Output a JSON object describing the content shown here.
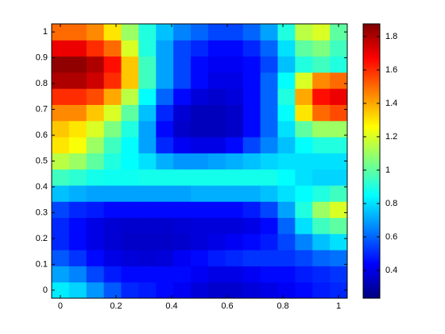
{
  "chart_data": {
    "type": "heatmap",
    "colormap": "jet",
    "x": [
      0,
      0.0625,
      0.125,
      0.1875,
      0.25,
      0.3125,
      0.375,
      0.4375,
      0.5,
      0.5625,
      0.625,
      0.6875,
      0.75,
      0.8125,
      0.875,
      0.9375,
      1
    ],
    "y": [
      0,
      0.0625,
      0.125,
      0.1875,
      0.25,
      0.3125,
      0.375,
      0.4375,
      0.5,
      0.5625,
      0.625,
      0.6875,
      0.75,
      0.8125,
      0.875,
      0.9375,
      1
    ],
    "z": [
      [
        0.82,
        0.78,
        0.68,
        0.58,
        0.5,
        0.48,
        0.45,
        0.42,
        0.38,
        0.36,
        0.36,
        0.38,
        0.4,
        0.42,
        0.45,
        0.48,
        0.5
      ],
      [
        0.7,
        0.65,
        0.55,
        0.48,
        0.45,
        0.45,
        0.45,
        0.45,
        0.42,
        0.4,
        0.4,
        0.42,
        0.45,
        0.45,
        0.48,
        0.5,
        0.52
      ],
      [
        0.58,
        0.52,
        0.45,
        0.4,
        0.38,
        0.37,
        0.38,
        0.42,
        0.45,
        0.48,
        0.5,
        0.52,
        0.52,
        0.52,
        0.55,
        0.6,
        0.62
      ],
      [
        0.5,
        0.45,
        0.4,
        0.37,
        0.35,
        0.35,
        0.35,
        0.36,
        0.38,
        0.4,
        0.42,
        0.45,
        0.48,
        0.55,
        0.65,
        0.75,
        0.8
      ],
      [
        0.5,
        0.45,
        0.4,
        0.37,
        0.36,
        0.36,
        0.36,
        0.37,
        0.38,
        0.38,
        0.38,
        0.4,
        0.45,
        0.6,
        0.8,
        0.95,
        1.0
      ],
      [
        0.55,
        0.5,
        0.48,
        0.45,
        0.45,
        0.45,
        0.45,
        0.45,
        0.45,
        0.45,
        0.45,
        0.48,
        0.55,
        0.7,
        0.9,
        1.1,
        1.2
      ],
      [
        0.75,
        0.72,
        0.7,
        0.7,
        0.7,
        0.7,
        0.7,
        0.7,
        0.72,
        0.72,
        0.72,
        0.72,
        0.75,
        0.8,
        0.85,
        0.9,
        0.95
      ],
      [
        0.95,
        0.92,
        0.88,
        0.87,
        0.87,
        0.88,
        0.88,
        0.88,
        0.88,
        0.88,
        0.88,
        0.88,
        0.88,
        0.85,
        0.8,
        0.78,
        0.78
      ],
      [
        1.15,
        1.1,
        1.0,
        0.9,
        0.85,
        0.8,
        0.72,
        0.68,
        0.68,
        0.7,
        0.72,
        0.75,
        0.78,
        0.8,
        0.8,
        0.8,
        0.8
      ],
      [
        1.3,
        1.25,
        1.1,
        0.95,
        0.85,
        0.7,
        0.5,
        0.42,
        0.4,
        0.4,
        0.45,
        0.55,
        0.65,
        0.75,
        0.85,
        0.9,
        0.9
      ],
      [
        1.35,
        1.3,
        1.2,
        1.05,
        0.9,
        0.7,
        0.45,
        0.35,
        0.33,
        0.33,
        0.35,
        0.45,
        0.6,
        0.8,
        1.0,
        1.1,
        1.1
      ],
      [
        1.45,
        1.45,
        1.35,
        1.2,
        1.0,
        0.75,
        0.5,
        0.37,
        0.33,
        0.33,
        0.35,
        0.45,
        0.6,
        0.85,
        1.3,
        1.5,
        1.55
      ],
      [
        1.6,
        1.6,
        1.55,
        1.4,
        1.15,
        0.85,
        0.6,
        0.45,
        0.38,
        0.36,
        0.38,
        0.45,
        0.6,
        0.9,
        1.4,
        1.65,
        1.7
      ],
      [
        1.8,
        1.8,
        1.75,
        1.6,
        1.35,
        0.95,
        0.7,
        0.55,
        0.45,
        0.4,
        0.4,
        0.45,
        0.6,
        0.85,
        1.2,
        1.45,
        1.5
      ],
      [
        1.85,
        1.85,
        1.8,
        1.65,
        1.35,
        0.95,
        0.7,
        0.55,
        0.45,
        0.42,
        0.42,
        0.45,
        0.55,
        0.75,
        0.9,
        0.95,
        0.9
      ],
      [
        1.7,
        1.7,
        1.6,
        1.5,
        1.2,
        0.9,
        0.7,
        0.55,
        0.5,
        0.45,
        0.45,
        0.5,
        0.6,
        0.8,
        1.0,
        1.05,
        0.95
      ],
      [
        1.5,
        1.5,
        1.45,
        1.3,
        1.1,
        0.9,
        0.75,
        0.65,
        0.6,
        0.55,
        0.55,
        0.6,
        0.7,
        0.9,
        1.15,
        1.2,
        1.0
      ]
    ],
    "xlim": [
      -0.03125,
      1.03125
    ],
    "ylim": [
      -0.03125,
      1.03125
    ],
    "xticks": [
      0,
      0.2,
      0.4,
      0.6,
      0.8,
      1
    ],
    "yticks": [
      0,
      0.1,
      0.2,
      0.3,
      0.4,
      0.5,
      0.6,
      0.7,
      0.8,
      0.9,
      1
    ],
    "clim": [
      0.233,
      1.876
    ],
    "cticks": [
      0.4,
      0.6,
      0.8,
      1,
      1.2,
      1.4,
      1.6,
      1.8
    ]
  }
}
